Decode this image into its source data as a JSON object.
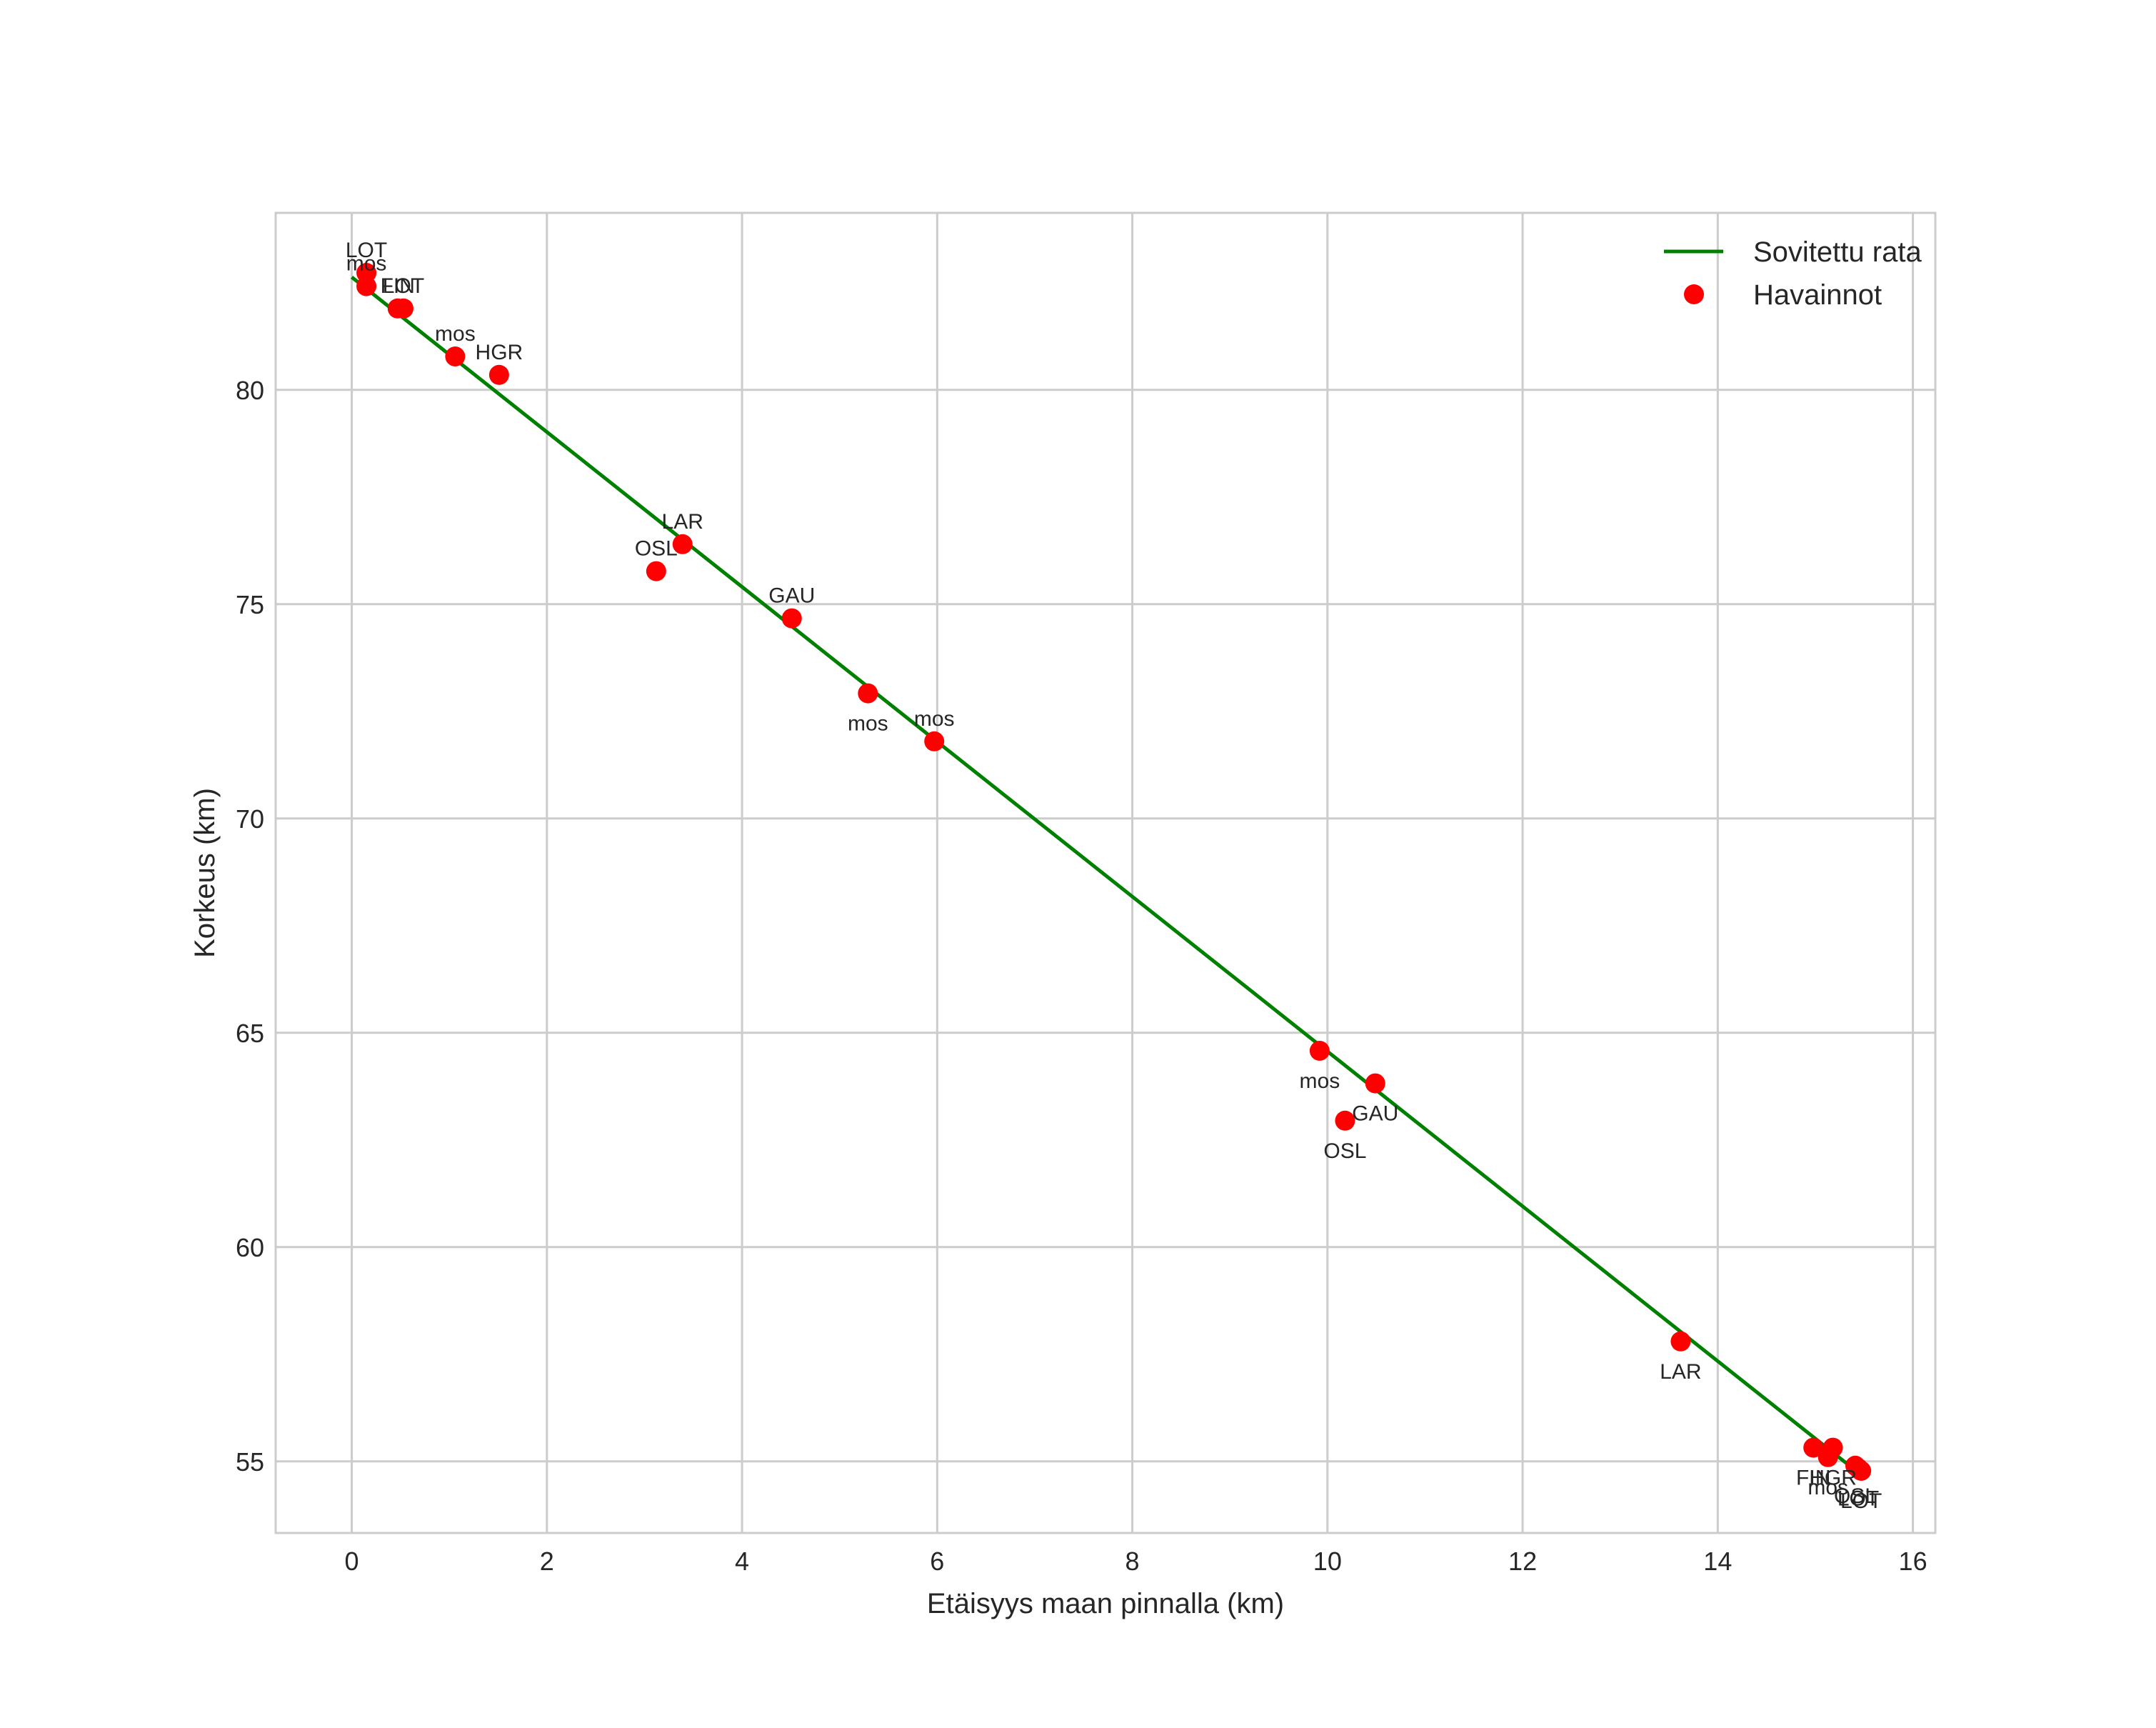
{
  "chart_data": {
    "type": "scatter",
    "title": "",
    "xlabel": "Etäisyys maan pinnalla (km)",
    "ylabel": "Korkeus (km)",
    "xlim": [
      -0.78,
      16.23
    ],
    "ylim": [
      53.33,
      84.13
    ],
    "xticks": [
      0,
      2,
      4,
      6,
      8,
      10,
      12,
      14,
      16
    ],
    "yticks": [
      55,
      60,
      65,
      70,
      75,
      80
    ],
    "grid": true,
    "legend_position": "upper right",
    "series": [
      {
        "name": "Sovitettu rata",
        "kind": "line",
        "color": "#008000",
        "x": [
          0.0,
          15.45
        ],
        "y": [
          82.63,
          54.72
        ]
      },
      {
        "name": "Havainnot",
        "kind": "scatter",
        "color": "#ff0000",
        "points": [
          {
            "x": 0.15,
            "y": 82.73,
            "label": "LOT",
            "label_pos": "above"
          },
          {
            "x": 0.15,
            "y": 82.42,
            "label": "mos",
            "label_pos": "above"
          },
          {
            "x": 0.47,
            "y": 81.9,
            "label": "FIN",
            "label_pos": "above"
          },
          {
            "x": 0.53,
            "y": 81.9,
            "label": "LOT",
            "label_pos": "above"
          },
          {
            "x": 1.06,
            "y": 80.78,
            "label": "mos",
            "label_pos": "above"
          },
          {
            "x": 1.51,
            "y": 80.35,
            "label": "HGR",
            "label_pos": "above"
          },
          {
            "x": 3.12,
            "y": 75.77,
            "label": "OSL",
            "label_pos": "above"
          },
          {
            "x": 3.39,
            "y": 76.4,
            "label": "LAR",
            "label_pos": "above"
          },
          {
            "x": 4.51,
            "y": 74.67,
            "label": "GAU",
            "label_pos": "above"
          },
          {
            "x": 5.29,
            "y": 72.92,
            "label": "mos",
            "label_pos": "below"
          },
          {
            "x": 5.97,
            "y": 71.8,
            "label": "mos",
            "label_pos": "above"
          },
          {
            "x": 9.92,
            "y": 64.58,
            "label": "mos",
            "label_pos": "below"
          },
          {
            "x": 10.49,
            "y": 63.82,
            "label": "GAU",
            "label_pos": "below"
          },
          {
            "x": 10.18,
            "y": 62.95,
            "label": "OSL",
            "label_pos": "below"
          },
          {
            "x": 13.62,
            "y": 57.8,
            "label": "LAR",
            "label_pos": "below"
          },
          {
            "x": 14.98,
            "y": 55.32,
            "label": "FIN",
            "label_pos": "below"
          },
          {
            "x": 15.18,
            "y": 55.32,
            "label": "HGR",
            "label_pos": "below"
          },
          {
            "x": 15.13,
            "y": 55.1,
            "label": "mos",
            "label_pos": "below"
          },
          {
            "x": 15.41,
            "y": 54.9,
            "label": "OSL",
            "label_pos": "below"
          },
          {
            "x": 15.47,
            "y": 54.78,
            "label": "LOT",
            "label_pos": "below"
          },
          {
            "x": 15.44,
            "y": 54.84,
            "label": "LOT",
            "label_pos": "below"
          }
        ]
      }
    ]
  },
  "legend": {
    "items": [
      {
        "label": "Sovitettu rata",
        "marker": "line",
        "color": "#008000"
      },
      {
        "label": "Havainnot",
        "marker": "dot",
        "color": "#ff0000"
      }
    ]
  },
  "axes": {
    "xlabel": "Etäisyys maan pinnalla (km)",
    "ylabel": "Korkeus (km)"
  },
  "style": {
    "grid_color": "#cccccc",
    "frame_color": "#cccccc",
    "text_color": "#262626"
  }
}
